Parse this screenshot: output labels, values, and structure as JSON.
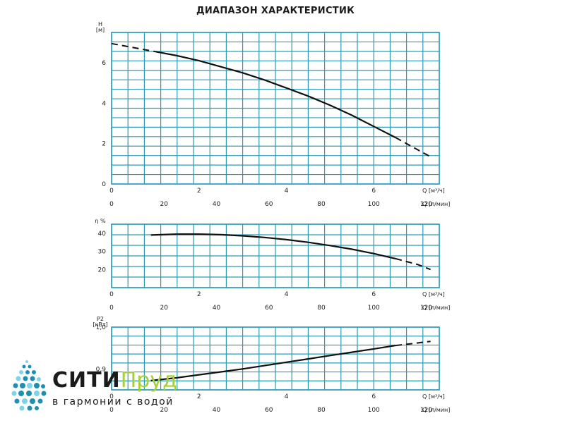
{
  "title": "ДИАПАЗОН ХАРАКТЕРИСТИК",
  "colors": {
    "grid": "#2a9bb3",
    "curve": "#111111",
    "logo_dots_dark": "#1e8fb0",
    "logo_dots_light": "#7fd3e8",
    "logo_accent": "#a7cf3a"
  },
  "logo": {
    "name": "СИТИ",
    "name_accent": "Пруд",
    "tagline": "в гармонии с водой"
  },
  "chart_data": [
    {
      "type": "line",
      "id": "head",
      "ylabel": "H",
      "yunit": "[м]",
      "xlabel": "Q [м³/ч]",
      "x2label": "Q [л/мин]",
      "xlim": [
        0,
        7.5
      ],
      "ylim": [
        0,
        7.5
      ],
      "x_ticks": [
        0,
        2,
        4,
        6
      ],
      "x2_ticks": [
        0,
        20,
        40,
        60,
        80,
        100,
        120
      ],
      "y_ticks": [
        0,
        2,
        4,
        6
      ],
      "y_tick_labels": [
        "0",
        "2",
        "4",
        "6"
      ],
      "grid": true,
      "series": [
        {
          "x": [
            0,
            0.5,
            1.0,
            1.5,
            2.0,
            2.5,
            3.0,
            3.5,
            4.0,
            4.5,
            5.0,
            5.5,
            6.0,
            6.5,
            7.0,
            7.3
          ],
          "y": [
            6.95,
            6.75,
            6.55,
            6.35,
            6.1,
            5.8,
            5.5,
            5.15,
            4.75,
            4.35,
            3.9,
            3.4,
            2.85,
            2.3,
            1.7,
            1.35
          ],
          "dashed_until": 0.9,
          "dashed_from": 6.9
        }
      ]
    },
    {
      "type": "line",
      "id": "efficiency",
      "ylabel": "η %",
      "xlabel": "Q [м³/ч]",
      "x2label": "Q [л/мин]",
      "xlim": [
        0,
        7.5
      ],
      "ylim": [
        10,
        45
      ],
      "x_ticks": [
        0,
        2,
        4,
        6
      ],
      "x2_ticks": [
        0,
        20,
        40,
        60,
        80,
        100,
        120
      ],
      "y_ticks": [
        20,
        30,
        40
      ],
      "y_tick_labels": [
        "20",
        "30",
        "40"
      ],
      "grid": true,
      "series": [
        {
          "x": [
            0.9,
            1.5,
            2.0,
            2.5,
            3.0,
            3.5,
            4.0,
            4.5,
            5.0,
            5.5,
            6.0,
            6.5,
            7.0,
            7.3
          ],
          "y": [
            39,
            39.5,
            39.5,
            39.2,
            38.6,
            37.7,
            36.5,
            35.0,
            33.2,
            31.2,
            28.8,
            26.0,
            22.8,
            20.0
          ],
          "dashed_from": 6.9
        }
      ]
    },
    {
      "type": "line",
      "id": "power",
      "ylabel": "P2",
      "yunit": "[кВт]",
      "xlabel": "Q [м³/ч]",
      "x2label": "Q [л/мин]",
      "xlim": [
        0,
        7.5
      ],
      "ylim": [
        0.85,
        1.0
      ],
      "x_ticks": [
        0,
        2,
        4,
        6
      ],
      "x2_ticks": [
        0,
        20,
        40,
        60,
        80,
        100,
        120
      ],
      "y_ticks": [
        0.9,
        1.0
      ],
      "y_tick_labels": [
        "0,9",
        "1,0"
      ],
      "grid": true,
      "series": [
        {
          "x": [
            0.9,
            1.5,
            2.0,
            2.5,
            3.0,
            3.5,
            4.0,
            4.5,
            5.0,
            5.5,
            6.0,
            6.5,
            7.0,
            7.3
          ],
          "y": [
            0.872,
            0.879,
            0.886,
            0.893,
            0.9,
            0.908,
            0.916,
            0.924,
            0.932,
            0.94,
            0.948,
            0.956,
            0.962,
            0.966
          ],
          "dashed_from": 6.9
        }
      ]
    }
  ]
}
